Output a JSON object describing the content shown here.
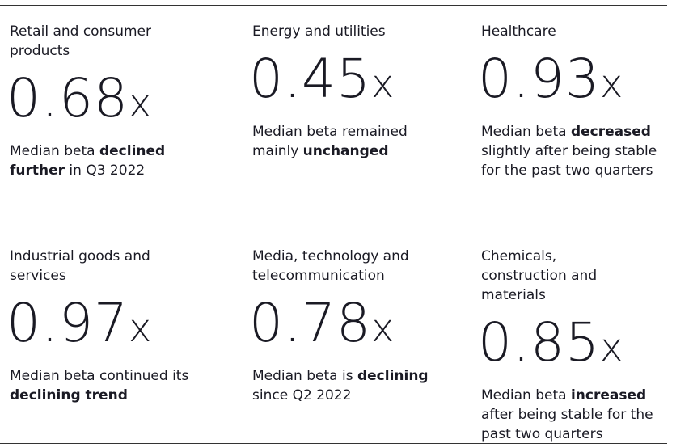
{
  "cards": [
    {
      "title": "Retail and consumer products",
      "value": "0.68",
      "unit": "x",
      "description": [
        {
          "text": "Median beta "
        },
        {
          "text": "declined further",
          "bold": true
        },
        {
          "text": " in Q3 2022"
        }
      ]
    },
    {
      "title": "Energy and utilities",
      "value": "0.45",
      "unit": "x",
      "description": [
        {
          "text": "Median beta remained mainly "
        },
        {
          "text": "unchanged",
          "bold": true
        }
      ]
    },
    {
      "title": "Healthcare",
      "value": "0.93",
      "unit": "x",
      "description": [
        {
          "text": "Median beta "
        },
        {
          "text": "decreased",
          "bold": true
        },
        {
          "text": " slightly after being stable for the past two quarters"
        }
      ]
    },
    {
      "title": "Industrial goods and services",
      "value": "0.97",
      "unit": "x",
      "description": [
        {
          "text": "Median beta continued its "
        },
        {
          "text": "declining trend",
          "bold": true
        }
      ]
    },
    {
      "title": "Media, technology and telecommunication",
      "value": "0.78",
      "unit": "x",
      "description": [
        {
          "text": "Median beta is "
        },
        {
          "text": "declining",
          "bold": true
        },
        {
          "text": " since Q2 2022"
        }
      ]
    },
    {
      "title": "Chemicals, construction and materials",
      "value": "0.85",
      "unit": "x",
      "description": [
        {
          "text": "Median beta "
        },
        {
          "text": "increased",
          "bold": true
        },
        {
          "text": " after being stable for the past two quarters"
        }
      ]
    }
  ]
}
